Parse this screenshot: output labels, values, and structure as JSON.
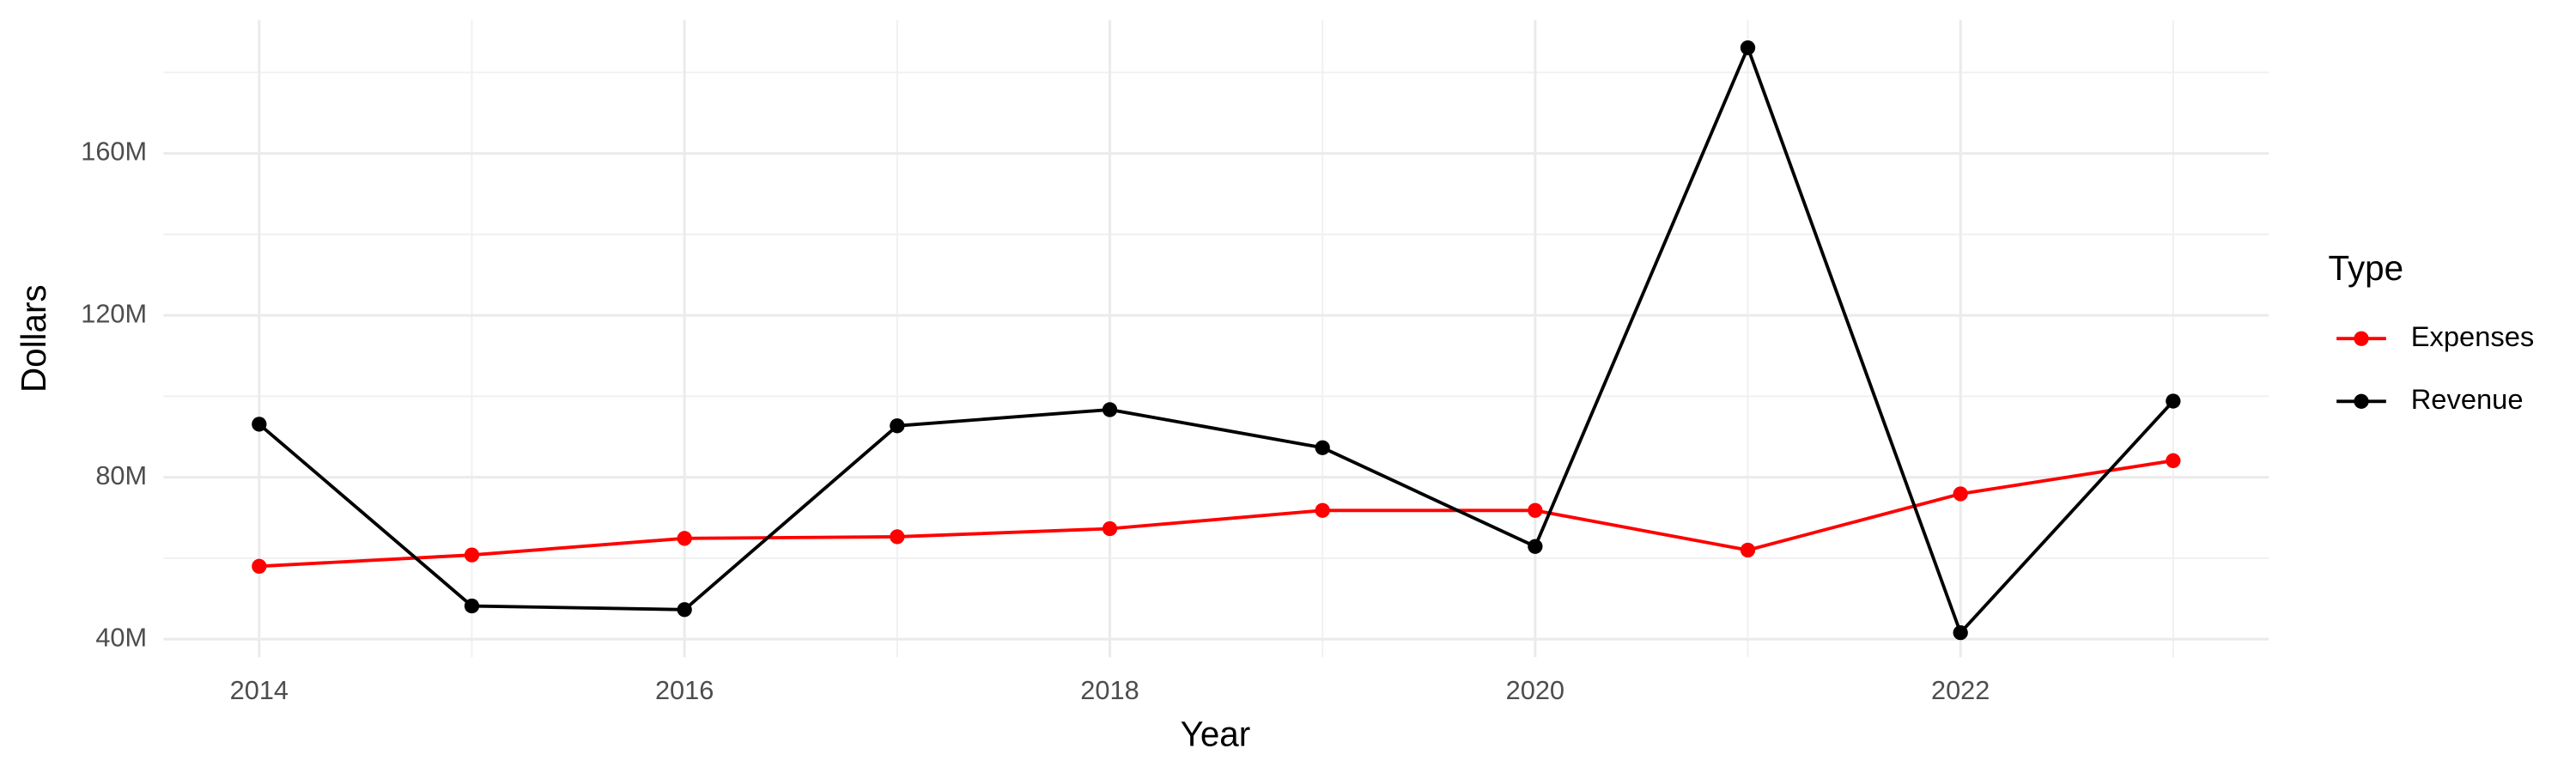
{
  "chart_data": {
    "type": "line",
    "x_label": "Year",
    "y_label": "Dollars",
    "legend_title": "Type",
    "legend_position": "right",
    "grid": true,
    "x": [
      2014,
      2015,
      2016,
      2017,
      2018,
      2019,
      2020,
      2021,
      2022,
      2023
    ],
    "series": [
      {
        "name": "Expenses",
        "color": "#ff0000",
        "values": [
          58000000,
          60800000,
          64900000,
          65300000,
          67300000,
          71800000,
          71800000,
          62000000,
          75900000,
          84100000
        ]
      },
      {
        "name": "Revenue",
        "color": "#000000",
        "values": [
          93100000,
          48200000,
          47300000,
          92700000,
          96700000,
          87300000,
          62900000,
          186100000,
          41600000,
          98800000
        ]
      }
    ],
    "xlim": [
      2013.55,
      2023.45
    ],
    "xticks": [
      2014,
      2016,
      2018,
      2020,
      2022
    ],
    "ylim": [
      35500000,
      193000000
    ],
    "yticks": [
      {
        "value": 40000000,
        "label": "40M"
      },
      {
        "value": 80000000,
        "label": "80M"
      },
      {
        "value": 120000000,
        "label": "120M"
      },
      {
        "value": 160000000,
        "label": "160M"
      }
    ]
  }
}
